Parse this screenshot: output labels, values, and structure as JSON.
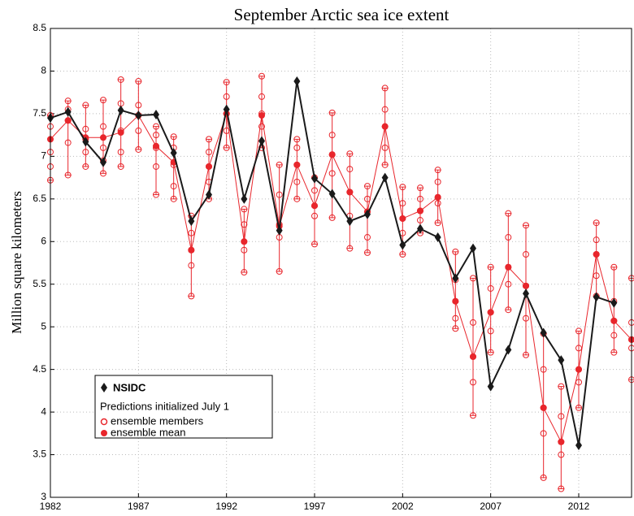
{
  "chart_data": {
    "type": "line",
    "title": "September Arctic sea ice extent",
    "y_label": "Million square kilometers",
    "x": [
      1982,
      1983,
      1984,
      1985,
      1986,
      1987,
      1988,
      1989,
      1990,
      1991,
      1992,
      1993,
      1994,
      1995,
      1996,
      1997,
      1998,
      1999,
      2000,
      2001,
      2002,
      2003,
      2004,
      2005,
      2006,
      2007,
      2008,
      2009,
      2010,
      2011,
      2012,
      2013,
      2014,
      2015
    ],
    "xlim": [
      1982,
      2015
    ],
    "xticks": [
      1982,
      1987,
      1992,
      1997,
      2002,
      2007,
      2012
    ],
    "ylim": [
      3,
      8.5
    ],
    "yticks": [
      3,
      3.5,
      4,
      4.5,
      5,
      5.5,
      6,
      6.5,
      7,
      7.5,
      8,
      8.5
    ],
    "grid": true,
    "legend": "lower left",
    "legend_title": "Predictions initialized July 1",
    "series": [
      {
        "name": "NSIDC",
        "color": "#1a1a1a",
        "marker": "diamond",
        "values": [
          7.45,
          7.52,
          7.17,
          6.93,
          7.54,
          7.48,
          7.49,
          7.04,
          6.24,
          6.55,
          7.55,
          6.5,
          7.18,
          6.13,
          7.88,
          6.74,
          6.56,
          6.24,
          6.32,
          6.75,
          5.96,
          6.15,
          6.05,
          5.57,
          5.92,
          4.3,
          4.73,
          5.39,
          4.93,
          4.61,
          3.61,
          5.35,
          5.28,
          null
        ]
      },
      {
        "name": "ensemble mean",
        "color": "#e8262c",
        "marker": "circle",
        "values": [
          7.2,
          7.42,
          7.22,
          7.22,
          7.28,
          7.48,
          7.12,
          6.93,
          5.9,
          6.88,
          7.5,
          6.0,
          7.48,
          6.18,
          6.9,
          6.42,
          7.02,
          6.58,
          6.35,
          7.35,
          6.27,
          6.36,
          6.52,
          5.3,
          4.65,
          5.17,
          5.7,
          5.48,
          4.05,
          3.65,
          4.5,
          5.85,
          5.07,
          4.85
        ]
      }
    ],
    "members": {
      "name": "ensemble members",
      "color": "#e8262c",
      "values": [
        [
          6.72,
          6.88,
          7.05,
          7.35,
          7.48
        ],
        [
          6.78,
          7.16,
          7.42,
          7.55,
          7.65
        ],
        [
          6.88,
          7.05,
          7.2,
          7.32,
          7.6
        ],
        [
          6.8,
          6.95,
          7.1,
          7.35,
          7.66
        ],
        [
          6.88,
          7.05,
          7.3,
          7.62,
          7.9
        ],
        [
          7.08,
          7.3,
          7.48,
          7.6,
          7.88
        ],
        [
          6.55,
          6.88,
          7.1,
          7.25,
          7.35
        ],
        [
          6.5,
          6.65,
          6.9,
          7.1,
          7.23
        ],
        [
          5.36,
          5.72,
          5.9,
          6.1,
          6.3
        ],
        [
          6.5,
          6.7,
          6.88,
          7.05,
          7.2
        ],
        [
          7.1,
          7.3,
          7.5,
          7.7,
          7.87
        ],
        [
          5.64,
          5.9,
          6.0,
          6.2,
          6.38
        ],
        [
          7.1,
          7.35,
          7.5,
          7.7,
          7.94
        ],
        [
          5.65,
          6.05,
          6.2,
          6.55,
          6.9
        ],
        [
          6.5,
          6.7,
          6.9,
          7.1,
          7.2
        ],
        [
          5.97,
          6.3,
          6.42,
          6.6,
          6.75
        ],
        [
          6.28,
          6.8,
          7.02,
          7.25,
          7.51
        ],
        [
          5.92,
          6.3,
          6.58,
          6.85,
          7.03
        ],
        [
          5.87,
          6.05,
          6.35,
          6.5,
          6.65
        ],
        [
          6.9,
          7.1,
          7.35,
          7.55,
          7.8
        ],
        [
          5.85,
          6.1,
          6.27,
          6.45,
          6.64
        ],
        [
          6.1,
          6.25,
          6.36,
          6.5,
          6.63
        ],
        [
          6.22,
          6.45,
          6.52,
          6.7,
          6.84
        ],
        [
          4.98,
          5.1,
          5.3,
          5.55,
          5.88
        ],
        [
          3.96,
          4.35,
          4.65,
          5.05,
          5.57
        ],
        [
          4.7,
          4.95,
          5.17,
          5.45,
          5.7
        ],
        [
          5.2,
          5.5,
          5.7,
          6.05,
          6.33
        ],
        [
          4.67,
          5.1,
          5.48,
          5.85,
          6.19
        ],
        [
          3.23,
          3.75,
          4.05,
          4.5,
          4.92
        ],
        [
          3.1,
          3.5,
          3.65,
          3.95,
          4.3
        ],
        [
          4.05,
          4.35,
          4.5,
          4.75,
          4.95
        ],
        [
          5.36,
          5.6,
          5.85,
          6.02,
          6.22
        ],
        [
          4.7,
          4.9,
          5.07,
          5.3,
          5.7
        ],
        [
          4.38,
          4.75,
          4.85,
          5.05,
          5.57
        ]
      ]
    }
  }
}
